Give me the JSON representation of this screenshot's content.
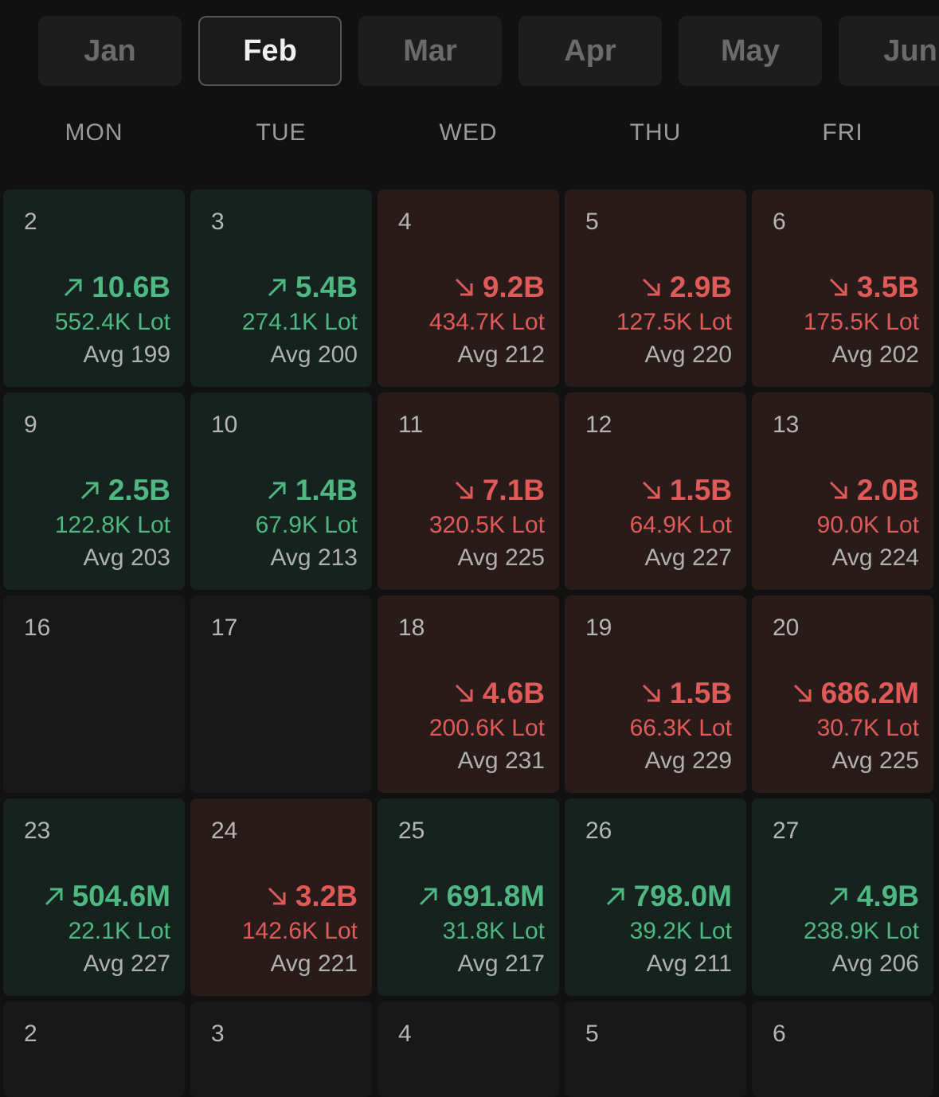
{
  "months": {
    "tabs": [
      {
        "label": "Jan",
        "active": false
      },
      {
        "label": "Feb",
        "active": true
      },
      {
        "label": "Mar",
        "active": false
      },
      {
        "label": "Apr",
        "active": false
      },
      {
        "label": "May",
        "active": false
      },
      {
        "label": "Jun",
        "active": false
      }
    ]
  },
  "weekdays": [
    "MON",
    "TUE",
    "WED",
    "THU",
    "FRI"
  ],
  "colors": {
    "up": "#4fb882",
    "down": "#e05a58",
    "up_bg": "#15221e",
    "down_bg": "#2a1b1b"
  },
  "calendar": {
    "weeks": [
      [
        {
          "date": "2",
          "trend": "up",
          "amount": "10.6B",
          "lot": "552.4K Lot",
          "avg": "Avg 199"
        },
        {
          "date": "3",
          "trend": "up",
          "amount": "5.4B",
          "lot": "274.1K Lot",
          "avg": "Avg 200"
        },
        {
          "date": "4",
          "trend": "down",
          "amount": "9.2B",
          "lot": "434.7K Lot",
          "avg": "Avg 212"
        },
        {
          "date": "5",
          "trend": "down",
          "amount": "2.9B",
          "lot": "127.5K Lot",
          "avg": "Avg 220"
        },
        {
          "date": "6",
          "trend": "down",
          "amount": "3.5B",
          "lot": "175.5K Lot",
          "avg": "Avg 202"
        }
      ],
      [
        {
          "date": "9",
          "trend": "up",
          "amount": "2.5B",
          "lot": "122.8K Lot",
          "avg": "Avg 203"
        },
        {
          "date": "10",
          "trend": "up",
          "amount": "1.4B",
          "lot": "67.9K Lot",
          "avg": "Avg 213"
        },
        {
          "date": "11",
          "trend": "down",
          "amount": "7.1B",
          "lot": "320.5K Lot",
          "avg": "Avg 225"
        },
        {
          "date": "12",
          "trend": "down",
          "amount": "1.5B",
          "lot": "64.9K Lot",
          "avg": "Avg 227"
        },
        {
          "date": "13",
          "trend": "down",
          "amount": "2.0B",
          "lot": "90.0K Lot",
          "avg": "Avg 224"
        }
      ],
      [
        {
          "date": "16",
          "trend": "none"
        },
        {
          "date": "17",
          "trend": "none"
        },
        {
          "date": "18",
          "trend": "down",
          "amount": "4.6B",
          "lot": "200.6K Lot",
          "avg": "Avg 231"
        },
        {
          "date": "19",
          "trend": "down",
          "amount": "1.5B",
          "lot": "66.3K Lot",
          "avg": "Avg 229"
        },
        {
          "date": "20",
          "trend": "down",
          "amount": "686.2M",
          "lot": "30.7K Lot",
          "avg": "Avg 225"
        }
      ],
      [
        {
          "date": "23",
          "trend": "up",
          "amount": "504.6M",
          "lot": "22.1K Lot",
          "avg": "Avg 227"
        },
        {
          "date": "24",
          "trend": "down",
          "amount": "3.2B",
          "lot": "142.6K Lot",
          "avg": "Avg 221"
        },
        {
          "date": "25",
          "trend": "up",
          "amount": "691.8M",
          "lot": "31.8K Lot",
          "avg": "Avg 217"
        },
        {
          "date": "26",
          "trend": "up",
          "amount": "798.0M",
          "lot": "39.2K Lot",
          "avg": "Avg 211"
        },
        {
          "date": "27",
          "trend": "up",
          "amount": "4.9B",
          "lot": "238.9K Lot",
          "avg": "Avg 206"
        }
      ],
      [
        {
          "date": "2",
          "trend": "none"
        },
        {
          "date": "3",
          "trend": "none"
        },
        {
          "date": "4",
          "trend": "none"
        },
        {
          "date": "5",
          "trend": "none"
        },
        {
          "date": "6",
          "trend": "none"
        }
      ]
    ]
  }
}
